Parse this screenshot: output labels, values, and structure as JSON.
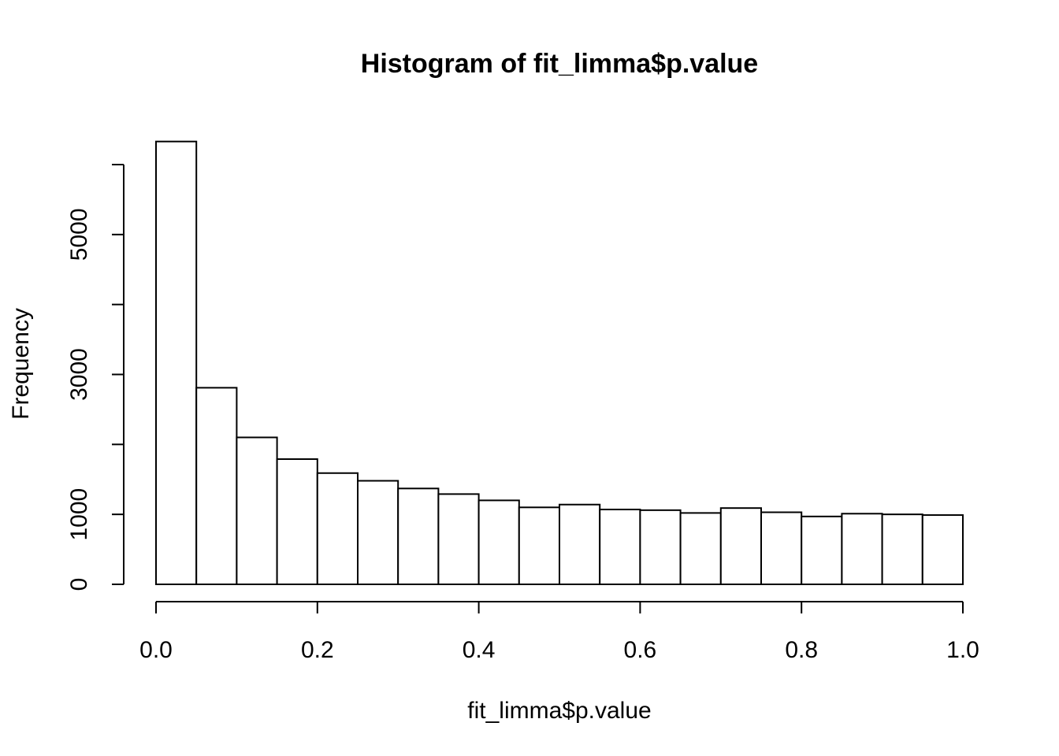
{
  "chart_data": {
    "type": "bar",
    "title": "Histogram of fit_limma$p.value",
    "xlabel": "fit_limma$p.value",
    "ylabel": "Frequency",
    "bin_edges": [
      0.0,
      0.05,
      0.1,
      0.15,
      0.2,
      0.25,
      0.3,
      0.35,
      0.4,
      0.45,
      0.5,
      0.55,
      0.6,
      0.65,
      0.7,
      0.75,
      0.8,
      0.85,
      0.9,
      0.95,
      1.0
    ],
    "values": [
      6330,
      2810,
      2100,
      1790,
      1590,
      1480,
      1370,
      1290,
      1200,
      1100,
      1140,
      1070,
      1060,
      1020,
      1090,
      1030,
      970,
      1010,
      1000,
      990
    ],
    "xlim": [
      0.0,
      1.0
    ],
    "ylim": [
      0,
      6000
    ],
    "x_ticks": [
      0.0,
      0.2,
      0.4,
      0.6,
      0.8,
      1.0
    ],
    "x_tick_labels": [
      "0.0",
      "0.2",
      "0.4",
      "0.6",
      "0.8",
      "1.0"
    ],
    "y_ticks": [
      0,
      1000,
      2000,
      3000,
      4000,
      5000,
      6000
    ],
    "y_tick_labels": [
      "0",
      "1000",
      "",
      "3000",
      "",
      "5000",
      ""
    ],
    "grid": false,
    "legend": "none"
  }
}
